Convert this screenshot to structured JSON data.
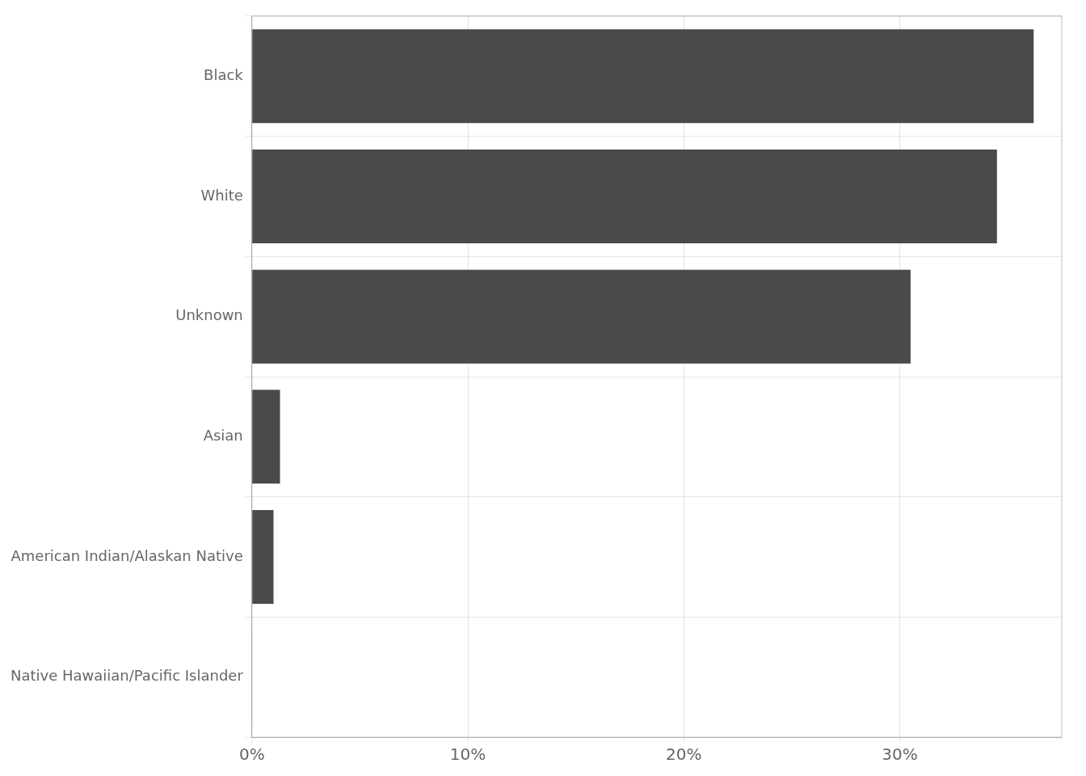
{
  "chart_data": {
    "type": "bar",
    "orientation": "horizontal",
    "categories": [
      "Black",
      "White",
      "Unknown",
      "Asian",
      "American Indian/Alaskan Native",
      "Native Hawaiian/Pacific Islander"
    ],
    "values": [
      36.2,
      34.5,
      30.5,
      1.3,
      1.0,
      0.02
    ],
    "color": "#4a4a4a",
    "xlim": [
      0,
      37.5
    ],
    "xticks": [
      {
        "value": 0,
        "label": "0%"
      },
      {
        "value": 10,
        "label": "10%"
      },
      {
        "value": 20,
        "label": "20%"
      },
      {
        "value": 30,
        "label": "30%"
      }
    ],
    "grid": true
  }
}
